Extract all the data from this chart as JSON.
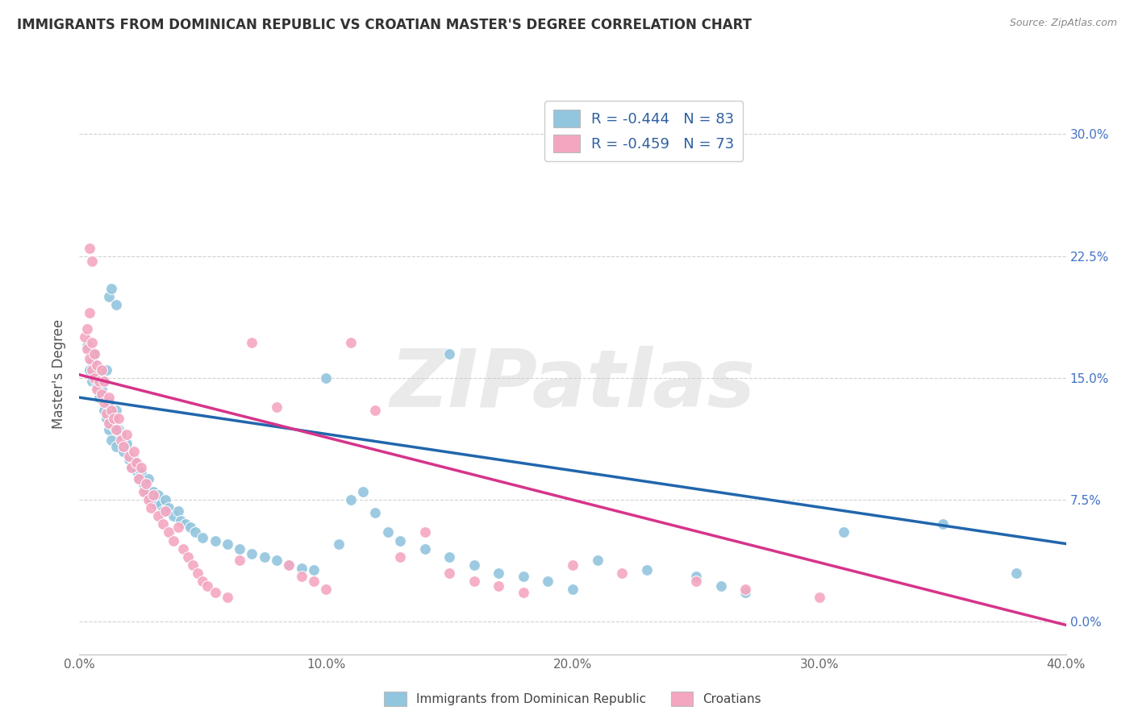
{
  "title": "IMMIGRANTS FROM DOMINICAN REPUBLIC VS CROATIAN MASTER'S DEGREE CORRELATION CHART",
  "source": "Source: ZipAtlas.com",
  "ylabel": "Master's Degree",
  "ytick_values": [
    0.0,
    0.075,
    0.15,
    0.225,
    0.3
  ],
  "ytick_labels_right": [
    "0.0%",
    "7.5%",
    "15.0%",
    "22.5%",
    "30.0%"
  ],
  "xmin": 0.0,
  "xmax": 0.4,
  "ymin": -0.02,
  "ymax": 0.325,
  "legend_r1": "R = -0.444",
  "legend_n1": "N = 83",
  "legend_r2": "R = -0.459",
  "legend_n2": "N = 73",
  "legend_label1": "Immigrants from Dominican Republic",
  "legend_label2": "Croatians",
  "blue_color": "#92c5de",
  "pink_color": "#f4a6c0",
  "blue_line_color": "#2166ac",
  "pink_line_color": "#d6348a",
  "blue_scatter": [
    [
      0.003,
      0.17
    ],
    [
      0.004,
      0.155
    ],
    [
      0.005,
      0.16
    ],
    [
      0.005,
      0.148
    ],
    [
      0.006,
      0.165
    ],
    [
      0.007,
      0.145
    ],
    [
      0.008,
      0.152
    ],
    [
      0.008,
      0.138
    ],
    [
      0.009,
      0.143
    ],
    [
      0.01,
      0.148
    ],
    [
      0.01,
      0.13
    ],
    [
      0.011,
      0.155
    ],
    [
      0.011,
      0.125
    ],
    [
      0.012,
      0.135
    ],
    [
      0.012,
      0.118
    ],
    [
      0.013,
      0.128
    ],
    [
      0.013,
      0.112
    ],
    [
      0.014,
      0.12
    ],
    [
      0.015,
      0.13
    ],
    [
      0.015,
      0.108
    ],
    [
      0.016,
      0.118
    ],
    [
      0.017,
      0.115
    ],
    [
      0.018,
      0.105
    ],
    [
      0.019,
      0.11
    ],
    [
      0.02,
      0.1
    ],
    [
      0.021,
      0.095
    ],
    [
      0.022,
      0.1
    ],
    [
      0.023,
      0.093
    ],
    [
      0.024,
      0.088
    ],
    [
      0.025,
      0.092
    ],
    [
      0.026,
      0.085
    ],
    [
      0.027,
      0.08
    ],
    [
      0.028,
      0.088
    ],
    [
      0.029,
      0.075
    ],
    [
      0.03,
      0.08
    ],
    [
      0.031,
      0.073
    ],
    [
      0.032,
      0.078
    ],
    [
      0.033,
      0.072
    ],
    [
      0.034,
      0.068
    ],
    [
      0.035,
      0.075
    ],
    [
      0.036,
      0.07
    ],
    [
      0.038,
      0.065
    ],
    [
      0.04,
      0.068
    ],
    [
      0.041,
      0.062
    ],
    [
      0.043,
      0.06
    ],
    [
      0.045,
      0.058
    ],
    [
      0.047,
      0.055
    ],
    [
      0.05,
      0.052
    ],
    [
      0.012,
      0.2
    ],
    [
      0.013,
      0.205
    ],
    [
      0.015,
      0.195
    ],
    [
      0.055,
      0.05
    ],
    [
      0.06,
      0.048
    ],
    [
      0.065,
      0.045
    ],
    [
      0.07,
      0.042
    ],
    [
      0.075,
      0.04
    ],
    [
      0.08,
      0.038
    ],
    [
      0.085,
      0.035
    ],
    [
      0.09,
      0.033
    ],
    [
      0.095,
      0.032
    ],
    [
      0.1,
      0.15
    ],
    [
      0.105,
      0.048
    ],
    [
      0.11,
      0.075
    ],
    [
      0.115,
      0.08
    ],
    [
      0.12,
      0.067
    ],
    [
      0.125,
      0.055
    ],
    [
      0.13,
      0.05
    ],
    [
      0.14,
      0.045
    ],
    [
      0.15,
      0.04
    ],
    [
      0.16,
      0.035
    ],
    [
      0.17,
      0.03
    ],
    [
      0.18,
      0.028
    ],
    [
      0.19,
      0.025
    ],
    [
      0.2,
      0.02
    ],
    [
      0.15,
      0.165
    ],
    [
      0.21,
      0.038
    ],
    [
      0.23,
      0.032
    ],
    [
      0.25,
      0.028
    ],
    [
      0.26,
      0.022
    ],
    [
      0.27,
      0.018
    ],
    [
      0.31,
      0.055
    ],
    [
      0.35,
      0.06
    ],
    [
      0.38,
      0.03
    ]
  ],
  "pink_scatter": [
    [
      0.002,
      0.175
    ],
    [
      0.003,
      0.168
    ],
    [
      0.003,
      0.18
    ],
    [
      0.004,
      0.162
    ],
    [
      0.004,
      0.19
    ],
    [
      0.005,
      0.155
    ],
    [
      0.005,
      0.172
    ],
    [
      0.006,
      0.165
    ],
    [
      0.006,
      0.15
    ],
    [
      0.007,
      0.158
    ],
    [
      0.007,
      0.143
    ],
    [
      0.008,
      0.148
    ],
    [
      0.009,
      0.14
    ],
    [
      0.009,
      0.155
    ],
    [
      0.01,
      0.135
    ],
    [
      0.01,
      0.148
    ],
    [
      0.011,
      0.128
    ],
    [
      0.012,
      0.138
    ],
    [
      0.012,
      0.122
    ],
    [
      0.013,
      0.13
    ],
    [
      0.014,
      0.125
    ],
    [
      0.015,
      0.118
    ],
    [
      0.016,
      0.125
    ],
    [
      0.017,
      0.112
    ],
    [
      0.018,
      0.108
    ],
    [
      0.019,
      0.115
    ],
    [
      0.02,
      0.102
    ],
    [
      0.021,
      0.095
    ],
    [
      0.022,
      0.105
    ],
    [
      0.023,
      0.098
    ],
    [
      0.024,
      0.088
    ],
    [
      0.025,
      0.095
    ],
    [
      0.026,
      0.08
    ],
    [
      0.027,
      0.085
    ],
    [
      0.028,
      0.075
    ],
    [
      0.029,
      0.07
    ],
    [
      0.03,
      0.078
    ],
    [
      0.032,
      0.065
    ],
    [
      0.034,
      0.06
    ],
    [
      0.035,
      0.068
    ],
    [
      0.036,
      0.055
    ],
    [
      0.038,
      0.05
    ],
    [
      0.04,
      0.058
    ],
    [
      0.042,
      0.045
    ],
    [
      0.044,
      0.04
    ],
    [
      0.046,
      0.035
    ],
    [
      0.048,
      0.03
    ],
    [
      0.05,
      0.025
    ],
    [
      0.004,
      0.23
    ],
    [
      0.005,
      0.222
    ],
    [
      0.052,
      0.022
    ],
    [
      0.055,
      0.018
    ],
    [
      0.06,
      0.015
    ],
    [
      0.065,
      0.038
    ],
    [
      0.07,
      0.172
    ],
    [
      0.08,
      0.132
    ],
    [
      0.085,
      0.035
    ],
    [
      0.09,
      0.028
    ],
    [
      0.095,
      0.025
    ],
    [
      0.1,
      0.02
    ],
    [
      0.11,
      0.172
    ],
    [
      0.12,
      0.13
    ],
    [
      0.13,
      0.04
    ],
    [
      0.14,
      0.055
    ],
    [
      0.15,
      0.03
    ],
    [
      0.16,
      0.025
    ],
    [
      0.17,
      0.022
    ],
    [
      0.18,
      0.018
    ],
    [
      0.2,
      0.035
    ],
    [
      0.22,
      0.03
    ],
    [
      0.25,
      0.025
    ],
    [
      0.27,
      0.02
    ],
    [
      0.3,
      0.015
    ]
  ],
  "blue_line_x": [
    0.0,
    0.4
  ],
  "blue_line_y": [
    0.138,
    0.048
  ],
  "pink_line_x": [
    0.0,
    0.4
  ],
  "pink_line_y": [
    0.152,
    -0.002
  ],
  "watermark": "ZIPatlas",
  "grid_color": "#cccccc"
}
